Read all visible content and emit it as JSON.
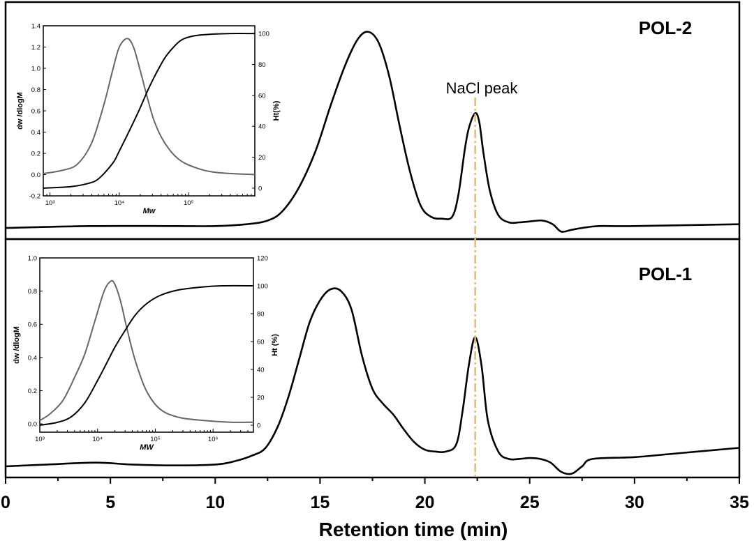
{
  "chart_data": [
    {
      "type": "line",
      "panel": "top",
      "title": "",
      "annotations": [
        "POL-2",
        "NaCl peak"
      ],
      "xlabel": "Retention time (min)",
      "ylabel": "",
      "xlim": [
        0,
        35
      ],
      "ylim": [
        0,
        1.1
      ],
      "x_ticks": [
        0,
        5,
        10,
        15,
        20,
        25,
        30,
        35
      ],
      "x_tick_labels": [
        "0",
        "5",
        "10",
        "15",
        "20",
        "25",
        "30",
        "35"
      ],
      "series": [
        {
          "color": "#000000",
          "x": [
            0,
            4,
            8,
            10,
            11.5,
            12.5,
            13.2,
            14,
            14.8,
            15.5,
            16.2,
            16.8,
            17.3,
            17.8,
            18.3,
            18.8,
            19.3,
            19.8,
            20.3,
            20.8,
            21.3,
            21.6,
            21.9,
            22.1,
            22.4,
            22.6,
            22.8,
            23.1,
            23.5,
            24,
            24.5,
            25,
            25.6,
            26.1,
            26.5,
            27,
            27.5,
            28.3,
            30,
            35
          ],
          "y": [
            0.0,
            0.01,
            0.01,
            0.01,
            0.02,
            0.04,
            0.09,
            0.22,
            0.42,
            0.66,
            0.88,
            1.02,
            1.06,
            1.0,
            0.82,
            0.55,
            0.3,
            0.12,
            0.06,
            0.05,
            0.06,
            0.18,
            0.42,
            0.54,
            0.62,
            0.57,
            0.4,
            0.2,
            0.07,
            0.03,
            0.03,
            0.035,
            0.04,
            0.02,
            -0.02,
            -0.01,
            0.0,
            0.01,
            0.01,
            0.02
          ]
        }
      ],
      "vline": {
        "x": 22.4,
        "style": "dash-dot",
        "color": "#e8b86b"
      }
    },
    {
      "type": "line",
      "panel": "bottom",
      "title": "",
      "annotations": [
        "POL-1"
      ],
      "xlabel": "Retention time (min)",
      "ylabel": "",
      "xlim": [
        0,
        35
      ],
      "ylim": [
        0,
        1.1
      ],
      "x_ticks": [
        0,
        5,
        10,
        15,
        20,
        25,
        30,
        35
      ],
      "x_tick_labels": [
        "0",
        "5",
        "10",
        "15",
        "20",
        "25",
        "30",
        "35"
      ],
      "series": [
        {
          "color": "#000000",
          "x": [
            0,
            2,
            4.3,
            6,
            8,
            10,
            11,
            11.8,
            12.4,
            13,
            13.5,
            14,
            14.5,
            15,
            15.5,
            16,
            16.5,
            17,
            17.5,
            18,
            18.5,
            19,
            19.5,
            20,
            20.5,
            21,
            21.5,
            21.8,
            22.1,
            22.4,
            22.7,
            23,
            23.5,
            24,
            24.5,
            25,
            25.5,
            26,
            26.5,
            27,
            27.5,
            28,
            30,
            32,
            35
          ],
          "y": [
            0.0,
            0.01,
            0.02,
            0.01,
            0.005,
            0.01,
            0.03,
            0.06,
            0.1,
            0.22,
            0.38,
            0.58,
            0.78,
            0.9,
            0.96,
            0.95,
            0.85,
            0.6,
            0.42,
            0.34,
            0.28,
            0.2,
            0.13,
            0.09,
            0.08,
            0.08,
            0.12,
            0.3,
            0.55,
            0.7,
            0.55,
            0.25,
            0.08,
            0.04,
            0.04,
            0.045,
            0.04,
            0.02,
            -0.03,
            -0.04,
            0.0,
            0.04,
            0.05,
            0.07,
            0.1
          ]
        }
      ],
      "vline": {
        "x": 22.4,
        "style": "dash-dot",
        "color": "#e8b86b"
      }
    },
    {
      "type": "line",
      "panel": "inset-top",
      "title": "",
      "xlabel": "Mw",
      "ylabel": "dw /dlogM",
      "y2label": "Ht(%)",
      "xscale": "log",
      "xlim": [
        800,
        900000
      ],
      "ylim": [
        -0.2,
        1.4
      ],
      "y2lim": [
        -5,
        105
      ],
      "x_ticks": [
        1000,
        10000,
        100000
      ],
      "x_tick_labels": [
        "10³",
        "10⁴",
        "10⁵"
      ],
      "y_ticks": [
        -0.2,
        0.0,
        0.2,
        0.4,
        0.6,
        0.8,
        1.0,
        1.2,
        1.4
      ],
      "y_tick_labels": [
        "-0.2",
        "0.0",
        "0.2",
        "0.4",
        "0.6",
        "0.8",
        "1.0",
        "1.2",
        "1.4"
      ],
      "y2_ticks": [
        0,
        20,
        40,
        60,
        80,
        100
      ],
      "y2_tick_labels": [
        "0",
        "20",
        "40",
        "60",
        "80",
        "100"
      ],
      "series": [
        {
          "axis": "left",
          "color": "#666666",
          "x": [
            800,
            1500,
            2500,
            4000,
            6000,
            8000,
            10000,
            13000,
            16000,
            20000,
            25000,
            32000,
            45000,
            70000,
            120000,
            250000,
            900000
          ],
          "y": [
            0.01,
            0.04,
            0.1,
            0.3,
            0.66,
            0.98,
            1.2,
            1.28,
            1.2,
            0.98,
            0.74,
            0.5,
            0.3,
            0.15,
            0.07,
            0.02,
            0.0
          ]
        },
        {
          "axis": "right",
          "color": "#000000",
          "x": [
            800,
            2000,
            3500,
            5000,
            8000,
            10000,
            15000,
            20000,
            25000,
            32000,
            45000,
            60000,
            80000,
            120000,
            200000,
            400000,
            900000
          ],
          "y": [
            0,
            1,
            3,
            6,
            16,
            24,
            40,
            52,
            62,
            72,
            84,
            91,
            96,
            98.5,
            99.5,
            100,
            100
          ]
        }
      ]
    },
    {
      "type": "line",
      "panel": "inset-bottom",
      "title": "",
      "xlabel": "MW",
      "ylabel": "dw /dlogM",
      "y2label": "Ht (%)",
      "xscale": "log",
      "xlim": [
        1000,
        5000000
      ],
      "ylim": [
        -0.05,
        1.0
      ],
      "y2lim": [
        -5,
        120
      ],
      "x_ticks": [
        1000,
        10000,
        100000,
        1000000
      ],
      "x_tick_labels": [
        "10³",
        "10⁴",
        "10⁵",
        "10⁶"
      ],
      "y_ticks": [
        0.0,
        0.2,
        0.4,
        0.6,
        0.8,
        1.0
      ],
      "y_tick_labels": [
        "0.0",
        "0.2",
        "0.4",
        "0.6",
        "0.8",
        "1.0"
      ],
      "y2_ticks": [
        0,
        20,
        40,
        60,
        80,
        100,
        120
      ],
      "y2_tick_labels": [
        "0",
        "20",
        "40",
        "60",
        "80",
        "100",
        "120"
      ],
      "series": [
        {
          "axis": "left",
          "color": "#666666",
          "x": [
            1000,
            1500,
            2500,
            4000,
            6000,
            9000,
            13000,
            17000,
            20000,
            25000,
            32000,
            45000,
            70000,
            120000,
            250000,
            700000,
            2000000,
            5000000
          ],
          "y": [
            0.02,
            0.06,
            0.14,
            0.28,
            0.42,
            0.62,
            0.8,
            0.86,
            0.84,
            0.74,
            0.58,
            0.38,
            0.2,
            0.09,
            0.04,
            0.02,
            0.01,
            0.01
          ]
        },
        {
          "axis": "right",
          "color": "#000000",
          "x": [
            1000,
            2000,
            3500,
            6000,
            10000,
            15000,
            20000,
            30000,
            45000,
            70000,
            120000,
            250000,
            600000,
            1500000,
            5000000
          ],
          "y": [
            0,
            2,
            6,
            16,
            32,
            46,
            56,
            68,
            79,
            87,
            93,
            97,
            99,
            100,
            100
          ]
        }
      ]
    }
  ]
}
